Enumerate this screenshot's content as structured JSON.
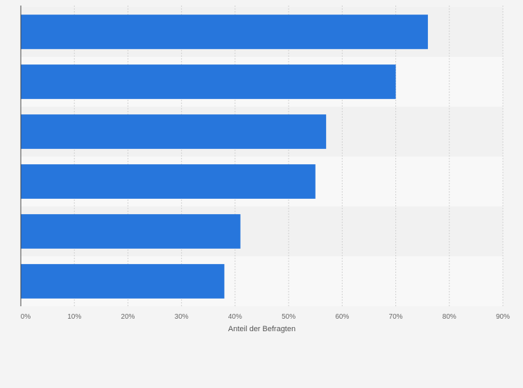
{
  "chart_data": {
    "type": "bar",
    "orientation": "horizontal",
    "title": "",
    "xlabel": "Anteil der Befragten",
    "ylabel": "",
    "categories": [
      "",
      "",
      "",
      "",
      "",
      ""
    ],
    "values": [
      76,
      70,
      57,
      55,
      41,
      38
    ],
    "value_unit": "%",
    "xlim": [
      0,
      90
    ],
    "x_ticks": [
      0,
      10,
      20,
      30,
      40,
      50,
      60,
      70,
      80,
      90
    ],
    "x_tick_labels": [
      "0%",
      "10%",
      "20%",
      "30%",
      "40%",
      "50%",
      "60%",
      "70%",
      "80%",
      "90%"
    ],
    "grid": "vertical dashed",
    "legend": "none",
    "colors": {
      "bar": "#2776dc",
      "band_dark": "#f1f1f1",
      "band_light": "#f8f8f8",
      "grid": "#cfcfcf",
      "axis": "#444444",
      "page": "#f4f4f4"
    }
  }
}
